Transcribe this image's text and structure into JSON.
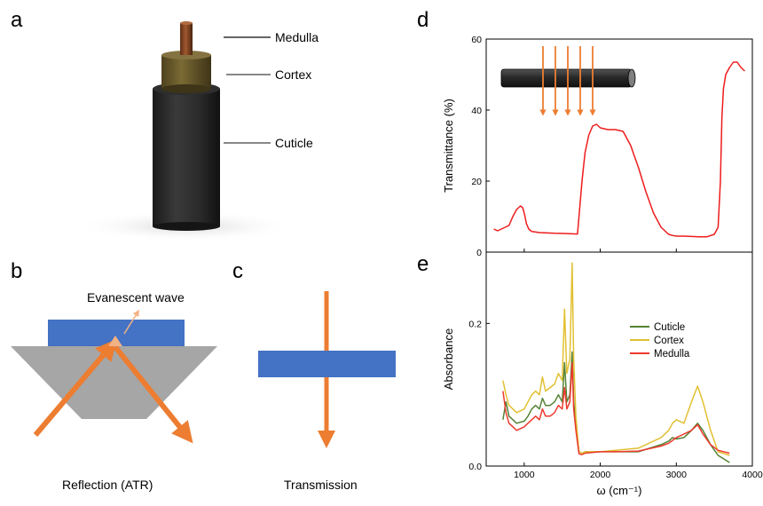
{
  "panels": {
    "a": {
      "letter": "a",
      "labels": [
        "Medulla",
        "Cortex",
        "Cuticle"
      ]
    },
    "b": {
      "letter": "b",
      "wave_label": "Evanescent wave",
      "caption": "Reflection (ATR)"
    },
    "c": {
      "letter": "c",
      "caption": "Transmission"
    },
    "d": {
      "letter": "d"
    },
    "e": {
      "letter": "e"
    }
  },
  "colors": {
    "orange": "#ed7d31",
    "blue": "#4472c4",
    "prism": "#a6a6a6",
    "cuticle": "#548235",
    "cortex": "#e2c032",
    "medulla": "#ee3a2e",
    "transmittance": "#ee1c1c",
    "fiber_dark": "#262626",
    "cortex_fill": "#6b5a2a",
    "medulla_fill": "#8a4a2a"
  },
  "chart_data": [
    {
      "id": "d",
      "type": "line",
      "ylabel": "Transmittance (%)",
      "xlabel": "",
      "xlim": [
        500,
        4000
      ],
      "ylim": [
        0,
        60
      ],
      "yticks": [
        0,
        20,
        40,
        60
      ],
      "ytick_labels": [
        "0",
        "20",
        "40",
        "60"
      ],
      "xticks": [
        1000,
        2000,
        3000,
        4000
      ],
      "legend": "none",
      "grid": false,
      "series": [
        {
          "color": "#ee1c1c",
          "x": [
            600,
            650,
            700,
            750,
            800,
            850,
            900,
            950,
            980,
            1000,
            1030,
            1060,
            1100,
            1200,
            1400,
            1600,
            1700,
            1720,
            1760,
            1800,
            1850,
            1900,
            1950,
            2000,
            2100,
            2200,
            2300,
            2400,
            2450,
            2500,
            2600,
            2700,
            2800,
            2900,
            2950,
            3000,
            3100,
            3200,
            3300,
            3400,
            3500,
            3550,
            3580,
            3600,
            3620,
            3650,
            3700,
            3750,
            3800,
            3850,
            3900
          ],
          "y": [
            6.5,
            6.0,
            6.5,
            7.0,
            7.5,
            10,
            12,
            13,
            12.5,
            11,
            8,
            6.5,
            5.8,
            5.5,
            5.3,
            5.2,
            5.1,
            10,
            20,
            28,
            33,
            35.5,
            36,
            35,
            34.5,
            34.5,
            34,
            30,
            27,
            24,
            17,
            11,
            7,
            5.0,
            4.7,
            4.5,
            4.5,
            4.4,
            4.3,
            4.3,
            5.0,
            7,
            20,
            38,
            46,
            50,
            52,
            53.5,
            53.5,
            52,
            51
          ]
        }
      ]
    },
    {
      "id": "e",
      "type": "line",
      "ylabel": "Absorbance",
      "xlabel": "ω (cm⁻¹)",
      "xlim": [
        500,
        4000
      ],
      "ylim": [
        0,
        0.3
      ],
      "yticks": [
        0,
        0.2
      ],
      "ytick_labels": [
        "0.0",
        "0.2"
      ],
      "xticks": [
        1000,
        2000,
        3000,
        4000
      ],
      "xtick_labels": [
        "1000",
        "2000",
        "3000",
        "4000"
      ],
      "legend": "top-right",
      "grid": false,
      "series": [
        {
          "name": "Cuticle",
          "color": "#548235",
          "x": [
            720,
            760,
            800,
            850,
            900,
            1000,
            1050,
            1100,
            1150,
            1200,
            1240,
            1280,
            1340,
            1400,
            1450,
            1500,
            1530,
            1560,
            1600,
            1630,
            1650,
            1680,
            1720,
            1760,
            1800,
            2000,
            2200,
            2500,
            2800,
            2900,
            2950,
            3000,
            3100,
            3200,
            3280,
            3350,
            3450,
            3550,
            3700
          ],
          "y": [
            0.065,
            0.09,
            0.07,
            0.065,
            0.06,
            0.063,
            0.07,
            0.08,
            0.085,
            0.08,
            0.095,
            0.085,
            0.085,
            0.09,
            0.1,
            0.09,
            0.145,
            0.09,
            0.1,
            0.16,
            0.09,
            0.06,
            0.02,
            0.018,
            0.02,
            0.02,
            0.02,
            0.02,
            0.03,
            0.035,
            0.04,
            0.038,
            0.04,
            0.05,
            0.06,
            0.05,
            0.03,
            0.015,
            0.005
          ]
        },
        {
          "name": "Cortex",
          "color": "#e2c032",
          "x": [
            720,
            760,
            800,
            850,
            900,
            1000,
            1050,
            1100,
            1150,
            1200,
            1240,
            1280,
            1340,
            1400,
            1450,
            1500,
            1530,
            1560,
            1600,
            1630,
            1650,
            1680,
            1720,
            1760,
            1800,
            2000,
            2200,
            2500,
            2800,
            2900,
            2950,
            3000,
            3100,
            3200,
            3280,
            3350,
            3450,
            3550,
            3700
          ],
          "y": [
            0.12,
            0.1,
            0.085,
            0.08,
            0.075,
            0.08,
            0.09,
            0.1,
            0.105,
            0.1,
            0.125,
            0.105,
            0.11,
            0.115,
            0.13,
            0.12,
            0.22,
            0.13,
            0.15,
            0.285,
            0.15,
            0.07,
            0.02,
            0.018,
            0.02,
            0.02,
            0.022,
            0.025,
            0.04,
            0.05,
            0.06,
            0.065,
            0.06,
            0.09,
            0.112,
            0.09,
            0.05,
            0.02,
            0.015
          ]
        },
        {
          "name": "Medulla",
          "color": "#ee3a2e",
          "x": [
            720,
            760,
            800,
            850,
            900,
            1000,
            1050,
            1100,
            1150,
            1200,
            1240,
            1280,
            1340,
            1400,
            1450,
            1500,
            1530,
            1560,
            1600,
            1630,
            1650,
            1680,
            1720,
            1760,
            1800,
            2000,
            2200,
            2500,
            2800,
            2900,
            2950,
            3000,
            3100,
            3200,
            3280,
            3350,
            3450,
            3550,
            3700
          ],
          "y": [
            0.105,
            0.075,
            0.06,
            0.055,
            0.05,
            0.055,
            0.06,
            0.065,
            0.07,
            0.065,
            0.08,
            0.07,
            0.07,
            0.075,
            0.085,
            0.08,
            0.11,
            0.08,
            0.09,
            0.145,
            0.08,
            0.05,
            0.017,
            0.016,
            0.018,
            0.02,
            0.02,
            0.021,
            0.028,
            0.032,
            0.036,
            0.04,
            0.045,
            0.05,
            0.058,
            0.045,
            0.03,
            0.022,
            0.018
          ]
        }
      ]
    }
  ]
}
